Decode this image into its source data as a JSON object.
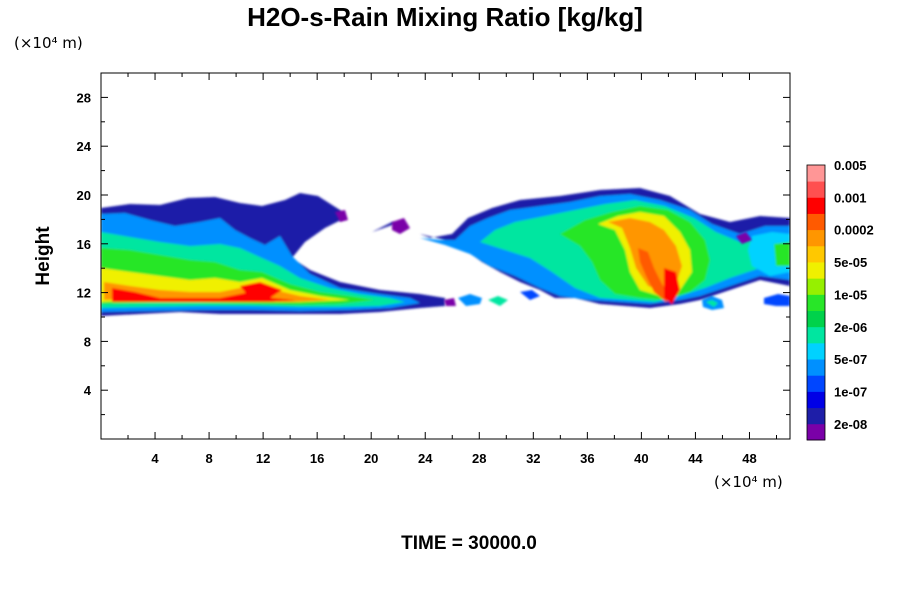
{
  "chart_data": {
    "type": "heatmap",
    "title": "H2O-s-Rain Mixing Ratio [kg/kg]",
    "ylabel": "Height",
    "xlabel": "",
    "x_unit": "(×10⁴ m)",
    "y_unit": "(×10⁴ m)",
    "xlim": [
      0,
      51
    ],
    "ylim": [
      0,
      30
    ],
    "x_ticks": [
      4,
      8,
      12,
      16,
      20,
      24,
      28,
      32,
      36,
      40,
      44,
      48
    ],
    "y_ticks": [
      4,
      8,
      12,
      16,
      20,
      24,
      28
    ],
    "x_tick_labels": [
      "4",
      "8",
      "12",
      "16",
      "20",
      "24",
      "28",
      "32",
      "36",
      "40",
      "44",
      "48"
    ],
    "y_tick_labels": [
      "4",
      "8",
      "12",
      "16",
      "20",
      "24",
      "28"
    ],
    "colorbar": {
      "colors": [
        "#7a00a8",
        "#1e1ea8",
        "#0000e6",
        "#0046ff",
        "#0090ff",
        "#00d2ff",
        "#00e6a0",
        "#00d24b",
        "#28e628",
        "#96f000",
        "#f0f000",
        "#ffc800",
        "#ff9600",
        "#ff5a00",
        "#ff0000",
        "#ff5050",
        "#ff9696"
      ],
      "labels": [
        "2e-08",
        "1e-07",
        "5e-07",
        "2e-06",
        "1e-05",
        "5e-05",
        "0.0002",
        "0.001",
        "0.005"
      ],
      "label_band_index": [
        1,
        3,
        5,
        7,
        9,
        11,
        13,
        15,
        17
      ]
    },
    "time_label": "TIME = 30000.0"
  }
}
